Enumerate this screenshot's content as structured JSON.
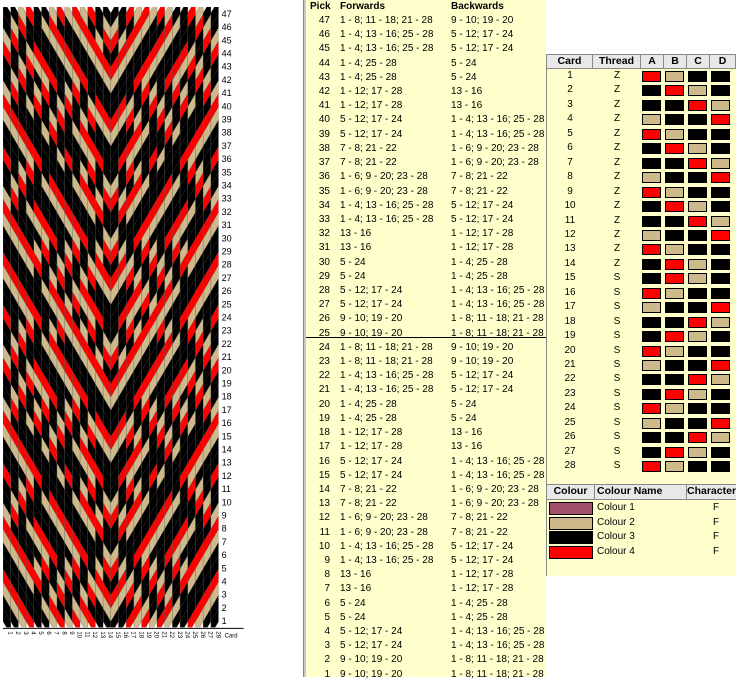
{
  "pattern": {
    "pick_numbers": [
      "47",
      "46",
      "45",
      "44",
      "43",
      "42",
      "41",
      "40",
      "39",
      "38",
      "37",
      "36",
      "35",
      "34",
      "33",
      "32",
      "31",
      "30",
      "29",
      "28",
      "27",
      "26",
      "25",
      "24",
      "23",
      "22",
      "21",
      "20",
      "19",
      "18",
      "17",
      "16",
      "15",
      "14",
      "13",
      "12",
      "11",
      "10",
      "9",
      "8",
      "7",
      "6",
      "5",
      "4",
      "3",
      "2",
      "1"
    ],
    "card_numbers": [
      "1",
      "2",
      "3",
      "4",
      "5",
      "6",
      "7",
      "8",
      "9",
      "10",
      "11",
      "12",
      "13",
      "14",
      "15",
      "16",
      "17",
      "18",
      "19",
      "20",
      "21",
      "22",
      "23",
      "24",
      "25",
      "26",
      "27",
      "28"
    ],
    "card_axis_label": "Card"
  },
  "picks": {
    "header_pick": "Pick",
    "header_forwards": "Forwards",
    "header_backwards": "Backwards",
    "rows": [
      {
        "pick": "47",
        "forwards": "1 - 8; 11 - 18; 21 - 28",
        "backwards": "9 - 10; 19 - 20"
      },
      {
        "pick": "46",
        "forwards": "1 - 4; 13 - 16; 25 - 28",
        "backwards": "5 - 12; 17 - 24"
      },
      {
        "pick": "45",
        "forwards": "1 - 4; 13 - 16; 25 - 28",
        "backwards": "5 - 12; 17 - 24"
      },
      {
        "pick": "44",
        "forwards": "1 - 4; 25 - 28",
        "backwards": "5 - 24"
      },
      {
        "pick": "43",
        "forwards": "1 - 4; 25 - 28",
        "backwards": "5 - 24"
      },
      {
        "pick": "42",
        "forwards": "1 - 12; 17 - 28",
        "backwards": "13 - 16"
      },
      {
        "pick": "41",
        "forwards": "1 - 12; 17 - 28",
        "backwards": "13 - 16"
      },
      {
        "pick": "40",
        "forwards": "5 - 12; 17 - 24",
        "backwards": "1 - 4; 13 - 16; 25 - 28"
      },
      {
        "pick": "39",
        "forwards": "5 - 12; 17 - 24",
        "backwards": "1 - 4; 13 - 16; 25 - 28"
      },
      {
        "pick": "38",
        "forwards": "7 - 8; 21 - 22",
        "backwards": "1 - 6; 9 - 20; 23 - 28"
      },
      {
        "pick": "37",
        "forwards": "7 - 8; 21 - 22",
        "backwards": "1 - 6; 9 - 20; 23 - 28"
      },
      {
        "pick": "36",
        "forwards": "1 - 6; 9 - 20; 23 - 28",
        "backwards": "7 - 8; 21 - 22"
      },
      {
        "pick": "35",
        "forwards": "1 - 6; 9 - 20; 23 - 28",
        "backwards": "7 - 8; 21 - 22"
      },
      {
        "pick": "34",
        "forwards": "1 - 4; 13 - 16; 25 - 28",
        "backwards": "5 - 12; 17 - 24"
      },
      {
        "pick": "33",
        "forwards": "1 - 4; 13 - 16; 25 - 28",
        "backwards": "5 - 12; 17 - 24"
      },
      {
        "pick": "32",
        "forwards": "13 - 16",
        "backwards": "1 - 12; 17 - 28"
      },
      {
        "pick": "31",
        "forwards": "13 - 16",
        "backwards": "1 - 12; 17 - 28"
      },
      {
        "pick": "30",
        "forwards": "5 - 24",
        "backwards": "1 - 4; 25 - 28"
      },
      {
        "pick": "29",
        "forwards": "5 - 24",
        "backwards": "1 - 4; 25 - 28"
      },
      {
        "pick": "28",
        "forwards": "5 - 12; 17 - 24",
        "backwards": "1 - 4; 13 - 16; 25 - 28"
      },
      {
        "pick": "27",
        "forwards": "5 - 12; 17 - 24",
        "backwards": "1 - 4; 13 - 16; 25 - 28"
      },
      {
        "pick": "26",
        "forwards": "9 - 10; 19 - 20",
        "backwards": "1 - 8; 11 - 18; 21 - 28"
      },
      {
        "pick": "25",
        "forwards": "9 - 10; 19 - 20",
        "backwards": "1 - 8; 11 - 18; 21 - 28"
      },
      {
        "pick": "24",
        "forwards": "1 - 8; 11 - 18; 21 - 28",
        "backwards": "9 - 10; 19 - 20"
      },
      {
        "pick": "23",
        "forwards": "1 - 8; 11 - 18; 21 - 28",
        "backwards": "9 - 10; 19 - 20"
      },
      {
        "pick": "22",
        "forwards": "1 - 4; 13 - 16; 25 - 28",
        "backwards": "5 - 12; 17 - 24"
      },
      {
        "pick": "21",
        "forwards": "1 - 4; 13 - 16; 25 - 28",
        "backwards": "5 - 12; 17 - 24"
      },
      {
        "pick": "20",
        "forwards": "1 - 4; 25 - 28",
        "backwards": "5 - 24"
      },
      {
        "pick": "19",
        "forwards": "1 - 4; 25 - 28",
        "backwards": "5 - 24"
      },
      {
        "pick": "18",
        "forwards": "1 - 12; 17 - 28",
        "backwards": "13 - 16"
      },
      {
        "pick": "17",
        "forwards": "1 - 12; 17 - 28",
        "backwards": "13 - 16"
      },
      {
        "pick": "16",
        "forwards": "5 - 12; 17 - 24",
        "backwards": "1 - 4; 13 - 16; 25 - 28"
      },
      {
        "pick": "15",
        "forwards": "5 - 12; 17 - 24",
        "backwards": "1 - 4; 13 - 16; 25 - 28"
      },
      {
        "pick": "14",
        "forwards": "7 - 8; 21 - 22",
        "backwards": "1 - 6; 9 - 20; 23 - 28"
      },
      {
        "pick": "13",
        "forwards": "7 - 8; 21 - 22",
        "backwards": "1 - 6; 9 - 20; 23 - 28"
      },
      {
        "pick": "12",
        "forwards": "1 - 6; 9 - 20; 23 - 28",
        "backwards": "7 - 8; 21 - 22"
      },
      {
        "pick": "11",
        "forwards": "1 - 6; 9 - 20; 23 - 28",
        "backwards": "7 - 8; 21 - 22"
      },
      {
        "pick": "10",
        "forwards": "1 - 4; 13 - 16; 25 - 28",
        "backwards": "5 - 12; 17 - 24"
      },
      {
        "pick": "9",
        "forwards": "1 - 4; 13 - 16; 25 - 28",
        "backwards": "5 - 12; 17 - 24"
      },
      {
        "pick": "8",
        "forwards": "13 - 16",
        "backwards": "1 - 12; 17 - 28"
      },
      {
        "pick": "7",
        "forwards": "13 - 16",
        "backwards": "1 - 12; 17 - 28"
      },
      {
        "pick": "6",
        "forwards": "5 - 24",
        "backwards": "1 - 4; 25 - 28"
      },
      {
        "pick": "5",
        "forwards": "5 - 24",
        "backwards": "1 - 4; 25 - 28"
      },
      {
        "pick": "4",
        "forwards": "5 - 12; 17 - 24",
        "backwards": "1 - 4; 13 - 16; 25 - 28"
      },
      {
        "pick": "3",
        "forwards": "5 - 12; 17 - 24",
        "backwards": "1 - 4; 13 - 16; 25 - 28"
      },
      {
        "pick": "2",
        "forwards": "9 - 10; 19 - 20",
        "backwards": "1 - 8; 11 - 18; 21 - 28"
      },
      {
        "pick": "1",
        "forwards": "9 - 10; 19 - 20",
        "backwards": "1 - 8; 11 - 18; 21 - 28"
      }
    ]
  },
  "cards": {
    "header_card": "Card",
    "header_thread": "Thread",
    "header_a": "A",
    "header_b": "B",
    "header_c": "C",
    "header_d": "D",
    "rows": [
      {
        "card": "1",
        "thread": "Z",
        "holes": [
          4,
          2,
          3,
          3
        ]
      },
      {
        "card": "2",
        "thread": "Z",
        "holes": [
          3,
          4,
          2,
          3
        ]
      },
      {
        "card": "3",
        "thread": "Z",
        "holes": [
          3,
          3,
          4,
          2
        ]
      },
      {
        "card": "4",
        "thread": "Z",
        "holes": [
          2,
          3,
          3,
          4
        ]
      },
      {
        "card": "5",
        "thread": "Z",
        "holes": [
          4,
          2,
          3,
          3
        ]
      },
      {
        "card": "6",
        "thread": "Z",
        "holes": [
          3,
          4,
          2,
          3
        ]
      },
      {
        "card": "7",
        "thread": "Z",
        "holes": [
          3,
          3,
          4,
          2
        ]
      },
      {
        "card": "8",
        "thread": "Z",
        "holes": [
          2,
          3,
          3,
          4
        ]
      },
      {
        "card": "9",
        "thread": "Z",
        "holes": [
          4,
          2,
          3,
          3
        ]
      },
      {
        "card": "10",
        "thread": "Z",
        "holes": [
          3,
          4,
          2,
          3
        ]
      },
      {
        "card": "11",
        "thread": "Z",
        "holes": [
          3,
          3,
          4,
          2
        ]
      },
      {
        "card": "12",
        "thread": "Z",
        "holes": [
          2,
          3,
          3,
          4
        ]
      },
      {
        "card": "13",
        "thread": "Z",
        "holes": [
          4,
          2,
          3,
          3
        ]
      },
      {
        "card": "14",
        "thread": "Z",
        "holes": [
          3,
          4,
          2,
          3
        ]
      },
      {
        "card": "15",
        "thread": "S",
        "holes": [
          3,
          4,
          2,
          3
        ]
      },
      {
        "card": "16",
        "thread": "S",
        "holes": [
          4,
          2,
          3,
          3
        ]
      },
      {
        "card": "17",
        "thread": "S",
        "holes": [
          2,
          3,
          3,
          4
        ]
      },
      {
        "card": "18",
        "thread": "S",
        "holes": [
          3,
          3,
          4,
          2
        ]
      },
      {
        "card": "19",
        "thread": "S",
        "holes": [
          3,
          4,
          2,
          3
        ]
      },
      {
        "card": "20",
        "thread": "S",
        "holes": [
          4,
          2,
          3,
          3
        ]
      },
      {
        "card": "21",
        "thread": "S",
        "holes": [
          2,
          3,
          3,
          4
        ]
      },
      {
        "card": "22",
        "thread": "S",
        "holes": [
          3,
          3,
          4,
          2
        ]
      },
      {
        "card": "23",
        "thread": "S",
        "holes": [
          3,
          4,
          2,
          3
        ]
      },
      {
        "card": "24",
        "thread": "S",
        "holes": [
          4,
          2,
          3,
          3
        ]
      },
      {
        "card": "25",
        "thread": "S",
        "holes": [
          2,
          3,
          3,
          4
        ]
      },
      {
        "card": "26",
        "thread": "S",
        "holes": [
          3,
          3,
          4,
          2
        ]
      },
      {
        "card": "27",
        "thread": "S",
        "holes": [
          3,
          4,
          2,
          3
        ]
      },
      {
        "card": "28",
        "thread": "S",
        "holes": [
          4,
          2,
          3,
          3
        ]
      }
    ]
  },
  "colours": {
    "header_colour": "Colour",
    "header_name": "Colour Name",
    "header_char": "Character",
    "rows": [
      {
        "name": "Colour 1",
        "char": "F",
        "hex": "#a0506a"
      },
      {
        "name": "Colour 2",
        "char": "F",
        "hex": "#cdb98a"
      },
      {
        "name": "Colour 3",
        "char": "F",
        "hex": "#000000"
      },
      {
        "name": "Colour 4",
        "char": "F",
        "hex": "#ff0000"
      }
    ]
  },
  "palette": {
    "1": "#a0506a",
    "2": "#cdb98a",
    "3": "#000000",
    "4": "#ff0000",
    "empty": "#ffffff"
  }
}
